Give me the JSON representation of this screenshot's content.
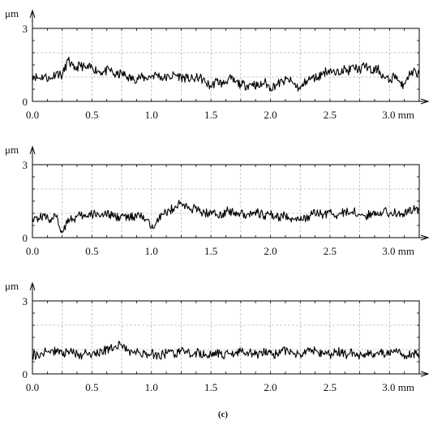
{
  "caption": "(c)",
  "chart_data": [
    {
      "type": "line",
      "yunit": "μm",
      "xunit": "mm",
      "xlim": [
        0,
        3.25
      ],
      "ylim": [
        0,
        3
      ],
      "x_ticks": [
        "0.0",
        "0.5",
        "1.0",
        "1.5",
        "2.0",
        "2.5",
        "3.0 mm"
      ],
      "y_ticks": [
        "0",
        "3"
      ],
      "grid": true,
      "series": [
        {
          "x": [
            0,
            0.05,
            0.1,
            0.15,
            0.2,
            0.25,
            0.3,
            0.35,
            0.4,
            0.45,
            0.5,
            0.55,
            0.6,
            0.65,
            0.7,
            0.75,
            0.8,
            0.85,
            0.9,
            0.95,
            1.0,
            1.05,
            1.1,
            1.15,
            1.2,
            1.25,
            1.3,
            1.35,
            1.4,
            1.45,
            1.5,
            1.55,
            1.6,
            1.65,
            1.7,
            1.75,
            1.8,
            1.85,
            1.9,
            1.95,
            2.0,
            2.05,
            2.1,
            2.15,
            2.2,
            2.25,
            2.3,
            2.35,
            2.4,
            2.45,
            2.5,
            2.55,
            2.6,
            2.65,
            2.7,
            2.75,
            2.8,
            2.85,
            2.9,
            2.95,
            3.0,
            3.05,
            3.1,
            3.15,
            3.2,
            3.25
          ],
          "values": [
            1.1,
            0.95,
            1.05,
            0.9,
            1.2,
            1.05,
            1.7,
            1.3,
            1.5,
            1.35,
            1.4,
            1.25,
            1.2,
            1.3,
            1.05,
            1.15,
            1.0,
            0.9,
            1.0,
            0.95,
            1.05,
            1.1,
            0.95,
            1.0,
            1.1,
            1.0,
            0.95,
            0.9,
            1.0,
            0.8,
            0.6,
            0.85,
            0.7,
            0.95,
            0.8,
            0.7,
            0.65,
            0.75,
            0.6,
            0.8,
            0.55,
            0.7,
            0.8,
            0.9,
            0.7,
            0.5,
            0.85,
            0.95,
            1.0,
            1.2,
            1.3,
            1.1,
            1.35,
            1.25,
            1.4,
            1.3,
            1.5,
            1.2,
            1.35,
            1.0,
            0.85,
            1.1,
            0.6,
            1.0,
            1.25,
            1.1
          ]
        }
      ]
    },
    {
      "type": "line",
      "yunit": "μm",
      "xunit": "mm",
      "xlim": [
        0,
        3.25
      ],
      "ylim": [
        0,
        3
      ],
      "x_ticks": [
        "0.0",
        "0.5",
        "1.0",
        "1.5",
        "2.0",
        "2.5",
        "3.0 mm"
      ],
      "y_ticks": [
        "0",
        "3"
      ],
      "grid": true,
      "series": [
        {
          "x": [
            0,
            0.05,
            0.1,
            0.15,
            0.2,
            0.25,
            0.3,
            0.35,
            0.4,
            0.45,
            0.5,
            0.55,
            0.6,
            0.65,
            0.7,
            0.75,
            0.8,
            0.85,
            0.9,
            0.95,
            1.0,
            1.05,
            1.1,
            1.15,
            1.2,
            1.25,
            1.3,
            1.35,
            1.4,
            1.45,
            1.5,
            1.55,
            1.6,
            1.65,
            1.7,
            1.75,
            1.8,
            1.85,
            1.9,
            1.95,
            2.0,
            2.05,
            2.1,
            2.15,
            2.2,
            2.25,
            2.3,
            2.35,
            2.4,
            2.45,
            2.5,
            2.55,
            2.6,
            2.65,
            2.7,
            2.75,
            2.8,
            2.85,
            2.9,
            2.95,
            3.0,
            3.05,
            3.1,
            3.15,
            3.2,
            3.25
          ],
          "values": [
            0.85,
            0.8,
            0.9,
            0.75,
            0.85,
            0.2,
            0.8,
            0.75,
            0.9,
            0.85,
            0.95,
            1.0,
            0.9,
            0.95,
            0.85,
            0.9,
            0.8,
            0.85,
            0.9,
            0.75,
            0.4,
            0.8,
            0.95,
            1.1,
            1.3,
            1.4,
            1.25,
            1.2,
            1.1,
            1.0,
            1.05,
            0.95,
            1.0,
            1.1,
            1.05,
            1.0,
            0.95,
            1.05,
            1.0,
            0.9,
            0.95,
            0.8,
            0.9,
            0.85,
            0.75,
            0.7,
            0.8,
            0.95,
            1.0,
            0.95,
            1.05,
            0.9,
            1.0,
            1.05,
            1.1,
            0.95,
            0.85,
            1.0,
            1.05,
            1.1,
            1.0,
            1.05,
            0.95,
            1.05,
            1.15,
            1.2
          ]
        }
      ]
    },
    {
      "type": "line",
      "yunit": "μm",
      "xunit": "mm",
      "xlim": [
        0,
        3.25
      ],
      "ylim": [
        0,
        3
      ],
      "x_ticks": [
        "0.0",
        "0.5",
        "1.0",
        "1.5",
        "2.0",
        "2.5",
        "3.0 mm"
      ],
      "y_ticks": [
        "0",
        "3"
      ],
      "grid": true,
      "series": [
        {
          "x": [
            0,
            0.05,
            0.1,
            0.15,
            0.2,
            0.25,
            0.3,
            0.35,
            0.4,
            0.45,
            0.5,
            0.55,
            0.6,
            0.65,
            0.7,
            0.75,
            0.8,
            0.85,
            0.9,
            0.95,
            1.0,
            1.05,
            1.1,
            1.15,
            1.2,
            1.25,
            1.3,
            1.35,
            1.4,
            1.45,
            1.5,
            1.55,
            1.6,
            1.65,
            1.7,
            1.75,
            1.8,
            1.85,
            1.9,
            1.95,
            2.0,
            2.05,
            2.1,
            2.15,
            2.2,
            2.25,
            2.3,
            2.35,
            2.4,
            2.45,
            2.5,
            2.55,
            2.6,
            2.65,
            2.7,
            2.75,
            2.8,
            2.85,
            2.9,
            2.95,
            3.0,
            3.05,
            3.1,
            3.15,
            3.2,
            3.25
          ],
          "values": [
            0.8,
            0.75,
            0.9,
            0.85,
            1.0,
            0.8,
            0.95,
            0.85,
            0.75,
            0.9,
            0.8,
            0.85,
            0.95,
            1.0,
            1.15,
            1.2,
            0.95,
            0.85,
            0.9,
            0.8,
            0.85,
            0.75,
            0.8,
            0.9,
            0.8,
            0.95,
            0.85,
            0.8,
            0.9,
            0.75,
            0.8,
            0.9,
            0.7,
            0.85,
            0.8,
            0.95,
            0.9,
            0.85,
            0.8,
            0.9,
            0.85,
            0.8,
            0.95,
            0.9,
            0.85,
            0.8,
            0.95,
            1.0,
            0.9,
            0.85,
            0.8,
            0.95,
            0.85,
            0.8,
            0.9,
            0.75,
            0.85,
            0.8,
            0.9,
            0.85,
            0.8,
            0.9,
            0.85,
            0.75,
            0.85,
            0.8
          ]
        }
      ]
    }
  ]
}
